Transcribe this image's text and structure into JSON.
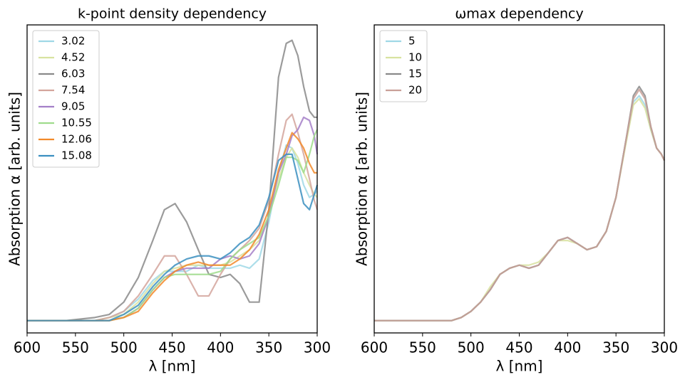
{
  "chart_data": [
    {
      "type": "line",
      "title": "k-point density dependency",
      "xlabel": "λ [nm]",
      "ylabel": "Absorption α [arb. units]",
      "xlim": [
        600,
        300
      ],
      "xticks": [
        600,
        550,
        500,
        450,
        400,
        350,
        300
      ],
      "ylim": [
        0,
        1
      ],
      "legend": "upper left",
      "x": [
        600,
        560,
        530,
        515,
        500,
        485,
        470,
        458,
        447,
        435,
        423,
        412,
        400,
        390,
        380,
        370,
        360,
        350,
        340,
        332,
        326,
        320,
        314,
        308,
        303,
        300
      ],
      "series": [
        {
          "name": "3.02",
          "color": "#9fd8e6",
          "values": [
            0.04,
            0.04,
            0.04,
            0.05,
            0.07,
            0.11,
            0.17,
            0.2,
            0.2,
            0.2,
            0.22,
            0.21,
            0.21,
            0.21,
            0.22,
            0.21,
            0.24,
            0.36,
            0.52,
            0.61,
            0.6,
            0.55,
            0.48,
            0.44,
            0.45,
            0.46
          ]
        },
        {
          "name": "4.52",
          "color": "#d8e2a0",
          "values": [
            0.04,
            0.04,
            0.04,
            0.05,
            0.06,
            0.1,
            0.16,
            0.2,
            0.21,
            0.22,
            0.22,
            0.22,
            0.22,
            0.23,
            0.25,
            0.27,
            0.3,
            0.38,
            0.5,
            0.57,
            0.6,
            0.57,
            0.52,
            0.48,
            0.45,
            0.44
          ]
        },
        {
          "name": "6.03",
          "color": "#8a8a8a",
          "values": [
            0.04,
            0.04,
            0.05,
            0.06,
            0.1,
            0.18,
            0.3,
            0.4,
            0.42,
            0.36,
            0.27,
            0.19,
            0.18,
            0.19,
            0.16,
            0.1,
            0.1,
            0.4,
            0.83,
            0.94,
            0.95,
            0.9,
            0.8,
            0.72,
            0.7,
            0.7
          ]
        },
        {
          "name": "7.54",
          "color": "#d4a49c",
          "values": [
            0.04,
            0.04,
            0.04,
            0.05,
            0.07,
            0.12,
            0.19,
            0.25,
            0.25,
            0.19,
            0.12,
            0.12,
            0.19,
            0.24,
            0.27,
            0.3,
            0.34,
            0.43,
            0.58,
            0.69,
            0.71,
            0.65,
            0.58,
            0.5,
            0.43,
            0.4
          ]
        },
        {
          "name": "9.05",
          "color": "#a47fc8",
          "values": [
            0.04,
            0.04,
            0.04,
            0.04,
            0.05,
            0.08,
            0.14,
            0.18,
            0.2,
            0.21,
            0.21,
            0.21,
            0.24,
            0.25,
            0.24,
            0.25,
            0.29,
            0.38,
            0.52,
            0.58,
            0.64,
            0.66,
            0.7,
            0.69,
            0.64,
            0.58
          ]
        },
        {
          "name": "10.55",
          "color": "#9fdc8c",
          "values": [
            0.04,
            0.04,
            0.04,
            0.04,
            0.05,
            0.08,
            0.14,
            0.18,
            0.19,
            0.19,
            0.19,
            0.19,
            0.2,
            0.24,
            0.27,
            0.29,
            0.31,
            0.38,
            0.48,
            0.57,
            0.57,
            0.56,
            0.52,
            0.58,
            0.64,
            0.66
          ]
        },
        {
          "name": "12.06",
          "color": "#f28a2a",
          "values": [
            0.04,
            0.04,
            0.04,
            0.04,
            0.05,
            0.07,
            0.13,
            0.17,
            0.2,
            0.22,
            0.23,
            0.22,
            0.22,
            0.22,
            0.24,
            0.27,
            0.32,
            0.4,
            0.53,
            0.6,
            0.65,
            0.63,
            0.6,
            0.55,
            0.52,
            0.52
          ]
        },
        {
          "name": "15.08",
          "color": "#3b8fc0",
          "values": [
            0.04,
            0.04,
            0.04,
            0.04,
            0.06,
            0.09,
            0.15,
            0.19,
            0.22,
            0.24,
            0.25,
            0.25,
            0.24,
            0.26,
            0.29,
            0.31,
            0.35,
            0.44,
            0.56,
            0.58,
            0.58,
            0.5,
            0.42,
            0.4,
            0.45,
            0.48
          ]
        }
      ]
    },
    {
      "type": "line",
      "title": "ωmax dependency",
      "xlabel": "λ [nm]",
      "ylabel": "Absorption α [arb. units]",
      "xlim": [
        600,
        300
      ],
      "xticks": [
        600,
        550,
        500,
        450,
        400,
        350,
        300
      ],
      "ylim": [
        0,
        1
      ],
      "legend": "upper left",
      "x": [
        600,
        560,
        520,
        510,
        500,
        490,
        480,
        470,
        460,
        450,
        440,
        430,
        420,
        410,
        400,
        390,
        380,
        370,
        360,
        350,
        340,
        332,
        326,
        320,
        314,
        308,
        303,
        300
      ],
      "series": [
        {
          "name": "5",
          "color": "#9fd8e6",
          "values": [
            0.04,
            0.04,
            0.04,
            0.05,
            0.07,
            0.1,
            0.14,
            0.19,
            0.21,
            0.22,
            0.21,
            0.22,
            0.26,
            0.3,
            0.31,
            0.29,
            0.27,
            0.28,
            0.33,
            0.44,
            0.62,
            0.75,
            0.77,
            0.74,
            0.66,
            0.6,
            0.58,
            0.56
          ]
        },
        {
          "name": "10",
          "color": "#d8e2a0",
          "values": [
            0.04,
            0.04,
            0.04,
            0.05,
            0.07,
            0.1,
            0.15,
            0.19,
            0.21,
            0.22,
            0.22,
            0.23,
            0.26,
            0.3,
            0.3,
            0.29,
            0.27,
            0.28,
            0.33,
            0.44,
            0.61,
            0.74,
            0.76,
            0.73,
            0.66,
            0.6,
            0.58,
            0.56
          ]
        },
        {
          "name": "15",
          "color": "#8a8a8a",
          "values": [
            0.04,
            0.04,
            0.04,
            0.05,
            0.07,
            0.1,
            0.14,
            0.19,
            0.21,
            0.22,
            0.21,
            0.22,
            0.26,
            0.3,
            0.31,
            0.29,
            0.27,
            0.28,
            0.33,
            0.44,
            0.62,
            0.77,
            0.8,
            0.77,
            0.67,
            0.6,
            0.58,
            0.56
          ]
        },
        {
          "name": "20",
          "color": "#c9a098",
          "values": [
            0.04,
            0.04,
            0.04,
            0.05,
            0.07,
            0.1,
            0.14,
            0.19,
            0.21,
            0.22,
            0.21,
            0.22,
            0.26,
            0.3,
            0.31,
            0.29,
            0.27,
            0.28,
            0.33,
            0.44,
            0.62,
            0.76,
            0.79,
            0.76,
            0.67,
            0.6,
            0.58,
            0.56
          ]
        }
      ]
    }
  ]
}
